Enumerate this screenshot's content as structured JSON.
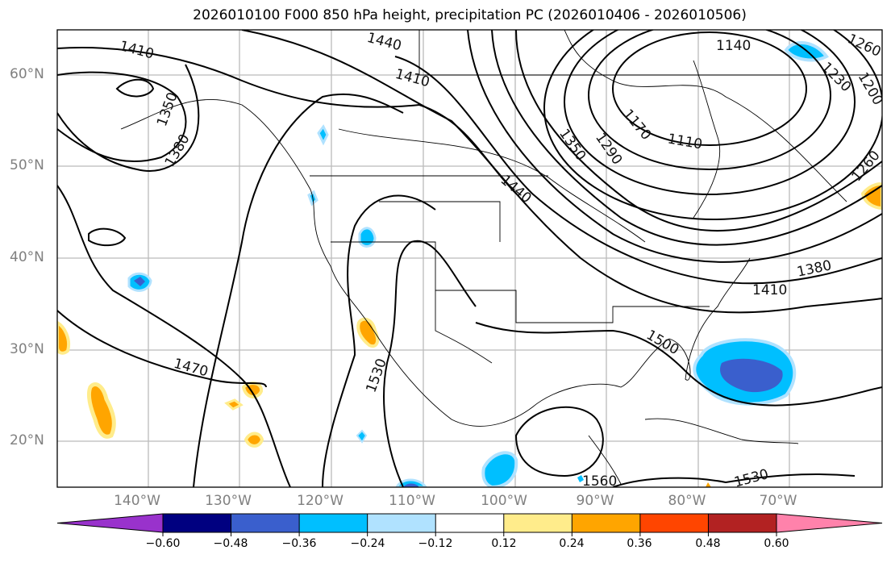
{
  "title": "2026010100 F000 850 hPa height, precipitation PC (2026010406 - 2026010506)",
  "lat_labels": [
    "60°N",
    "50°N",
    "40°N",
    "30°N",
    "20°N"
  ],
  "lon_labels": [
    "140°W",
    "130°W",
    "120°W",
    "110°W",
    "100°W",
    "90°W",
    "80°W",
    "70°W"
  ],
  "contour_labels": [
    "1410",
    "1440",
    "1410",
    "1350",
    "1380",
    "1140",
    "1260",
    "1230",
    "1200",
    "1170",
    "1110",
    "1290",
    "1350",
    "1440",
    "1260",
    "1380",
    "1410",
    "1500",
    "1470",
    "1530",
    "1530",
    "1560"
  ],
  "colorbar": {
    "ticks": [
      "−0.60",
      "−0.48",
      "−0.36",
      "−0.24",
      "−0.12",
      "0.12",
      "0.24",
      "0.36",
      "0.48",
      "0.60"
    ],
    "colors": [
      "#9932CC",
      "#000080",
      "#3A5FCD",
      "#00BFFF",
      "#B0E2FF",
      "#FFFFFF",
      "#FFEC8B",
      "#FFA500",
      "#FF4500",
      "#B22222",
      "#FF82AB"
    ]
  }
}
